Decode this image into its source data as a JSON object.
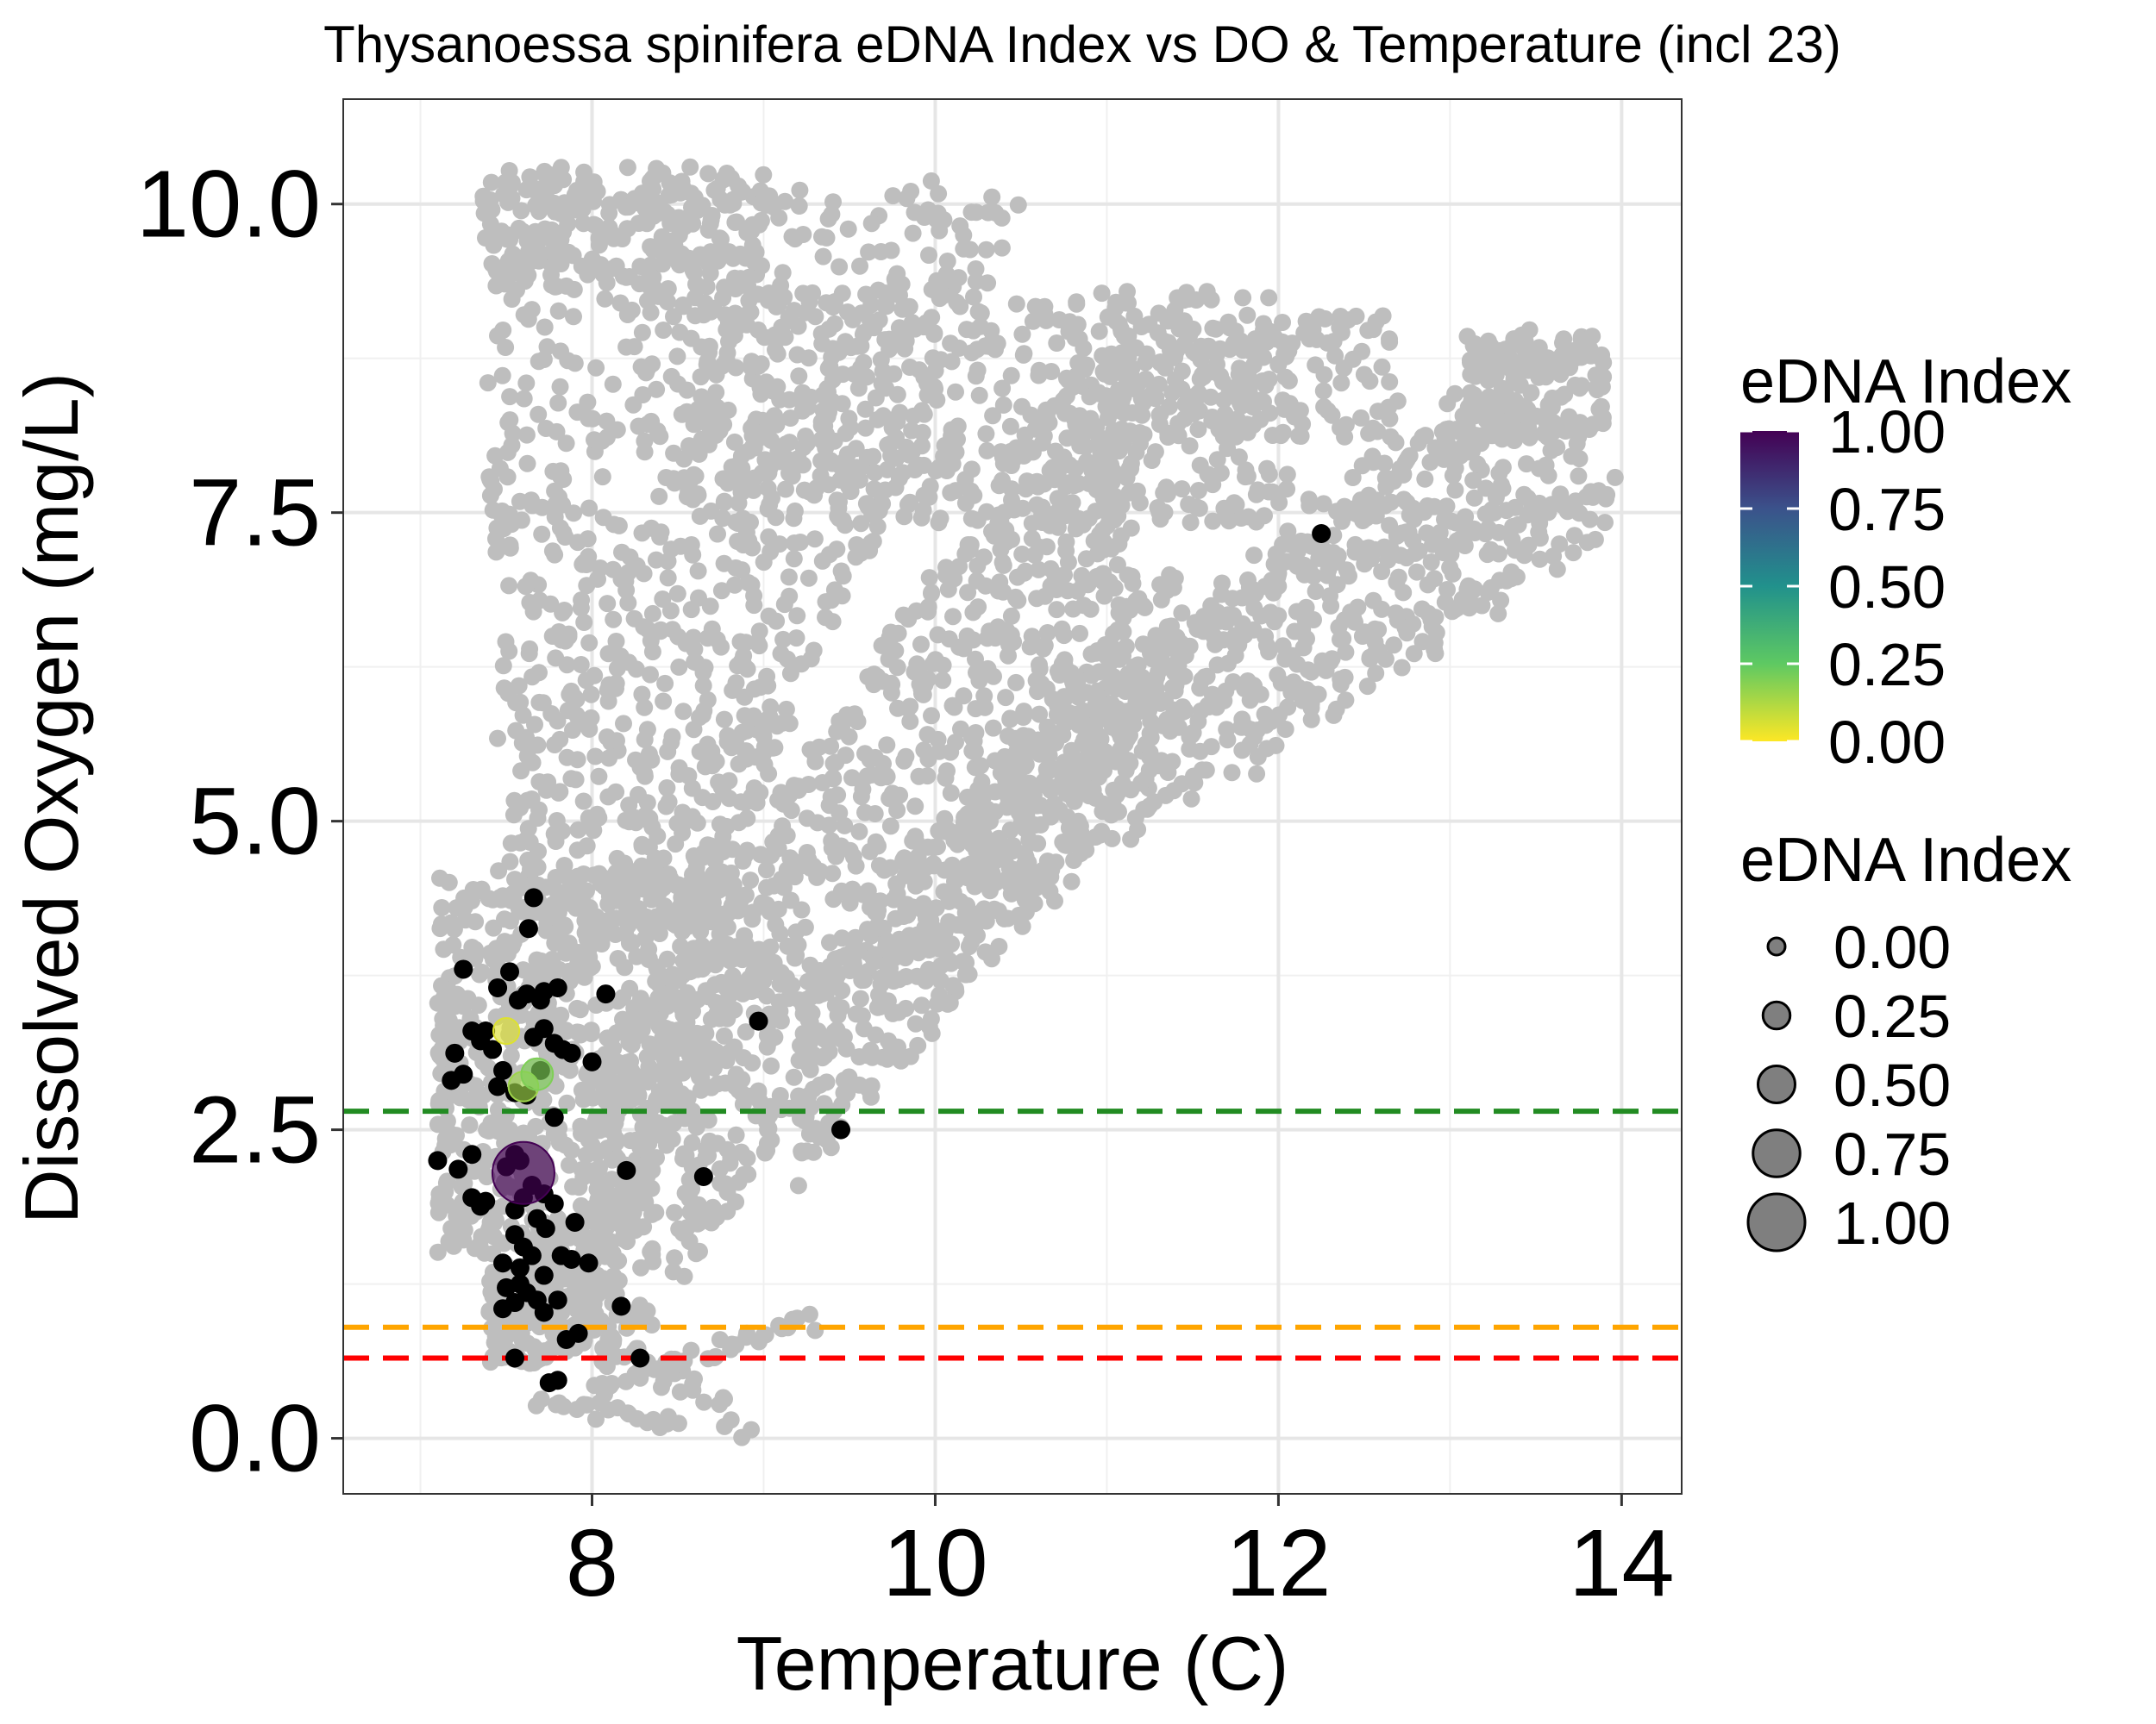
{
  "chart_data": {
    "type": "scatter",
    "title": "Thysanoessa spinifera eDNA Index vs DO & Temperature (incl 23)",
    "xlabel": "Temperature (C)",
    "ylabel": "Dissolved Oxygen (mg/L)",
    "xlim": [
      6.55,
      14.35
    ],
    "ylim": [
      -0.45,
      10.85
    ],
    "xticks": [
      8,
      10,
      12,
      14
    ],
    "yticks": [
      0.0,
      2.5,
      5.0,
      7.5,
      10.0
    ],
    "xtick_labels": [
      "8",
      "10",
      "12",
      "14"
    ],
    "ytick_labels": [
      "0.0",
      "2.5",
      "5.0",
      "7.5",
      "10.0"
    ],
    "grid": true,
    "background_points": {
      "color": "#bebebe",
      "description_regions": [
        {
          "x": [
            7.1,
            8.9
          ],
          "y": [
            0.05,
            4.5
          ]
        },
        {
          "x": [
            7.3,
            9.9
          ],
          "y": [
            4.0,
            10.35
          ]
        },
        {
          "x": [
            8.0,
            11.0
          ],
          "y": [
            1.5,
            9.4
          ]
        },
        {
          "x": [
            9.3,
            12.6
          ],
          "y": [
            3.5,
            9.0
          ]
        },
        {
          "x": [
            11.0,
            14.0
          ],
          "y": [
            5.8,
            9.0
          ]
        }
      ]
    },
    "hlines": [
      {
        "y": 2.65,
        "color": "#228b22",
        "style": "dashed"
      },
      {
        "y": 0.9,
        "color": "#ffa500",
        "style": "dashed"
      },
      {
        "y": 0.65,
        "color": "#ff0000",
        "style": "dashed"
      }
    ],
    "detection_points": [
      {
        "x": 7.6,
        "y": 2.15,
        "edna": 1.0
      },
      {
        "x": 7.5,
        "y": 3.3,
        "edna": 0.05
      },
      {
        "x": 7.6,
        "y": 2.85,
        "edna": 0.15
      },
      {
        "x": 7.68,
        "y": 2.95,
        "edna": 0.2
      }
    ],
    "zero_points": [
      [
        7.25,
        3.8
      ],
      [
        7.45,
        3.65
      ],
      [
        7.52,
        3.78
      ],
      [
        7.57,
        3.55
      ],
      [
        7.62,
        3.6
      ],
      [
        7.66,
        4.38
      ],
      [
        7.63,
        4.13
      ],
      [
        7.7,
        3.55
      ],
      [
        7.72,
        3.62
      ],
      [
        7.8,
        3.65
      ],
      [
        8.08,
        3.6
      ],
      [
        7.3,
        3.3
      ],
      [
        7.35,
        3.22
      ],
      [
        7.38,
        3.3
      ],
      [
        7.42,
        3.15
      ],
      [
        7.2,
        3.12
      ],
      [
        7.25,
        2.95
      ],
      [
        7.18,
        2.9
      ],
      [
        7.48,
        2.98
      ],
      [
        7.45,
        2.85
      ],
      [
        7.55,
        2.8
      ],
      [
        7.62,
        2.78
      ],
      [
        7.66,
        3.25
      ],
      [
        7.72,
        3.32
      ],
      [
        7.78,
        3.2
      ],
      [
        7.83,
        3.15
      ],
      [
        7.88,
        3.12
      ],
      [
        8.0,
        3.05
      ],
      [
        7.7,
        2.98
      ],
      [
        7.78,
        2.6
      ],
      [
        8.97,
        3.38
      ],
      [
        9.45,
        2.5
      ],
      [
        12.25,
        7.33
      ],
      [
        8.65,
        2.12
      ],
      [
        8.2,
        2.17
      ],
      [
        7.1,
        2.25
      ],
      [
        7.3,
        2.3
      ],
      [
        7.22,
        2.18
      ],
      [
        7.55,
        2.3
      ],
      [
        7.58,
        2.25
      ],
      [
        7.5,
        2.2
      ],
      [
        7.65,
        2.05
      ],
      [
        7.72,
        1.98
      ],
      [
        7.78,
        1.9
      ],
      [
        7.3,
        1.95
      ],
      [
        7.35,
        1.88
      ],
      [
        7.38,
        1.92
      ],
      [
        7.6,
        1.95
      ],
      [
        7.55,
        1.85
      ],
      [
        7.68,
        1.78
      ],
      [
        7.55,
        1.65
      ],
      [
        7.73,
        1.7
      ],
      [
        7.9,
        1.75
      ],
      [
        7.6,
        1.55
      ],
      [
        7.65,
        1.48
      ],
      [
        7.48,
        1.42
      ],
      [
        7.58,
        1.38
      ],
      [
        7.72,
        1.32
      ],
      [
        7.82,
        1.48
      ],
      [
        7.88,
        1.45
      ],
      [
        7.98,
        1.42
      ],
      [
        7.5,
        1.22
      ],
      [
        7.58,
        1.25
      ],
      [
        7.62,
        1.18
      ],
      [
        7.55,
        1.1
      ],
      [
        7.48,
        1.05
      ],
      [
        7.68,
        1.12
      ],
      [
        7.8,
        1.12
      ],
      [
        7.72,
        1.02
      ],
      [
        8.17,
        1.07
      ],
      [
        7.85,
        0.8
      ],
      [
        7.92,
        0.85
      ],
      [
        7.55,
        0.65
      ],
      [
        7.75,
        0.45
      ],
      [
        7.8,
        0.47
      ],
      [
        8.28,
        0.65
      ]
    ],
    "legend_color": {
      "title": "eDNA Index",
      "labels": [
        "1.00",
        "0.75",
        "0.50",
        "0.25",
        "0.00"
      ],
      "values": [
        1.0,
        0.75,
        0.5,
        0.25,
        0.0
      ],
      "colors": [
        "#440154",
        "#3b528b",
        "#21918c",
        "#5ec962",
        "#fde725"
      ]
    },
    "legend_size": {
      "title": "eDNA Index",
      "labels": [
        "0.00",
        "0.25",
        "0.50",
        "0.75",
        "1.00"
      ],
      "values": [
        0.0,
        0.25,
        0.5,
        0.75,
        1.0
      ]
    }
  }
}
